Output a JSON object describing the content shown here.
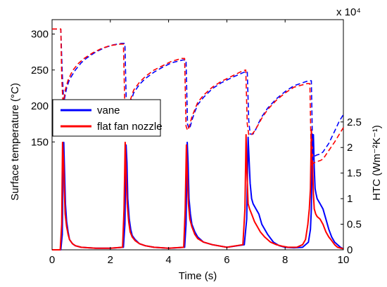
{
  "chart_data": {
    "type": "line",
    "xlabel": "Time (s)",
    "xlim": [
      0,
      10
    ],
    "x_ticks": [
      "0",
      "2",
      "4",
      "6",
      "8",
      "10"
    ],
    "y_left": {
      "label": "Surface temperature (°C)",
      "lim": [
        0,
        320
      ],
      "ticks": [
        "150",
        "200",
        "250",
        "300"
      ]
    },
    "y_right": {
      "label": "HTC (Wm⁻²K⁻¹)",
      "multiplier": "x 10⁴",
      "lim": [
        0,
        4.5
      ],
      "ticks": [
        "0",
        "0.5",
        "1",
        "1.5",
        "2",
        "2.5"
      ]
    },
    "legend": {
      "placement": "middle-left"
    },
    "series": [
      {
        "name": "vane",
        "color": "#0000ff",
        "axis": "right",
        "style": "solid",
        "x": [
          0,
          0.3,
          0.35,
          0.38,
          0.4,
          0.43,
          0.46,
          0.5,
          0.55,
          0.6,
          0.7,
          0.8,
          1.0,
          1.5,
          2.0,
          2.45,
          2.5,
          2.54,
          2.57,
          2.6,
          2.65,
          2.7,
          2.75,
          2.85,
          3.0,
          3.2,
          3.5,
          4.0,
          4.55,
          4.6,
          4.64,
          4.67,
          4.7,
          4.75,
          4.8,
          4.9,
          5.0,
          5.2,
          5.5,
          6.0,
          6.6,
          6.68,
          6.73,
          6.76,
          6.8,
          6.85,
          6.9,
          6.95,
          7.0,
          7.1,
          7.2,
          7.4,
          7.6,
          7.8,
          8.0,
          8.3,
          8.6,
          8.8,
          8.87,
          8.9,
          8.93,
          8.97,
          9.0,
          9.03,
          9.06,
          9.1,
          9.2,
          9.3,
          9.4,
          9.5,
          9.6,
          9.7,
          9.8,
          9.9,
          10.0
        ],
        "y": [
          0,
          0,
          0.3,
          1.8,
          2.1,
          1.5,
          0.9,
          0.55,
          0.35,
          0.2,
          0.12,
          0.08,
          0.05,
          0.03,
          0.03,
          0.05,
          0.5,
          2.05,
          1.7,
          1.0,
          0.6,
          0.4,
          0.28,
          0.2,
          0.12,
          0.08,
          0.05,
          0.03,
          0.05,
          0.5,
          2.1,
          1.7,
          1.0,
          0.7,
          0.5,
          0.35,
          0.25,
          0.15,
          0.1,
          0.05,
          0.1,
          0.6,
          2.2,
          1.8,
          1.3,
          1.0,
          0.9,
          0.85,
          0.8,
          0.7,
          0.5,
          0.3,
          0.15,
          0.08,
          0.05,
          0.04,
          0.05,
          0.15,
          0.4,
          0.8,
          2.0,
          2.25,
          1.6,
          1.2,
          1.1,
          1.0,
          0.9,
          0.8,
          0.6,
          0.4,
          0.25,
          0.15,
          0.1,
          0.05,
          0.02
        ]
      },
      {
        "name": "flat fan nozzle",
        "color": "#ff0000",
        "axis": "right",
        "style": "solid",
        "x": [
          0,
          0.28,
          0.33,
          0.36,
          0.39,
          0.42,
          0.45,
          0.5,
          0.55,
          0.6,
          0.7,
          0.8,
          1.0,
          1.5,
          2.0,
          2.42,
          2.47,
          2.51,
          2.54,
          2.58,
          2.63,
          2.68,
          2.75,
          2.85,
          3.0,
          3.2,
          3.5,
          4.0,
          4.52,
          4.57,
          4.61,
          4.64,
          4.68,
          4.73,
          4.8,
          4.9,
          5.0,
          5.2,
          5.5,
          6.0,
          6.55,
          6.62,
          6.66,
          6.69,
          6.73,
          6.78,
          6.85,
          6.95,
          7.05,
          7.15,
          7.3,
          7.5,
          7.7,
          7.9,
          8.1,
          8.4,
          8.6,
          8.7,
          8.78,
          8.83,
          8.87,
          8.9,
          8.93,
          8.97,
          9.0,
          9.05,
          9.1,
          9.2,
          9.3,
          9.4,
          9.5,
          9.6,
          9.7,
          9.8,
          10.0
        ],
        "y": [
          0,
          0,
          0.5,
          2.1,
          1.8,
          1.2,
          0.7,
          0.45,
          0.3,
          0.2,
          0.12,
          0.08,
          0.05,
          0.03,
          0.03,
          0.05,
          0.8,
          2.1,
          1.5,
          0.9,
          0.55,
          0.35,
          0.25,
          0.18,
          0.12,
          0.08,
          0.05,
          0.03,
          0.05,
          0.8,
          2.05,
          1.5,
          0.9,
          0.6,
          0.45,
          0.3,
          0.22,
          0.15,
          0.1,
          0.05,
          0.1,
          0.8,
          2.25,
          1.5,
          0.9,
          0.8,
          0.7,
          0.55,
          0.45,
          0.35,
          0.25,
          0.15,
          0.1,
          0.07,
          0.05,
          0.05,
          0.1,
          0.2,
          0.5,
          0.8,
          1.2,
          2.35,
          1.9,
          1.1,
          0.8,
          0.7,
          0.65,
          0.6,
          0.5,
          0.35,
          0.25,
          0.18,
          0.1,
          0.05,
          0.02
        ]
      },
      {
        "name": "vane",
        "color": "#0000ff",
        "axis": "left",
        "style": "dashed",
        "x": [
          0,
          0.3,
          0.35,
          0.4,
          0.5,
          0.6,
          0.8,
          1.0,
          1.2,
          1.5,
          1.8,
          2.1,
          2.4,
          2.5,
          2.55,
          2.6,
          2.65,
          2.7,
          2.8,
          3.0,
          3.2,
          3.5,
          3.8,
          4.1,
          4.5,
          4.6,
          4.65,
          4.7,
          4.75,
          4.8,
          4.9,
          5.0,
          5.2,
          5.5,
          5.8,
          6.2,
          6.6,
          6.7,
          6.75,
          6.8,
          6.9,
          7.0,
          7.1,
          7.2,
          7.4,
          7.7,
          8.0,
          8.3,
          8.8,
          8.9,
          8.95,
          9.0,
          9.1,
          9.2,
          9.3,
          9.5,
          9.7,
          9.85,
          10.0
        ],
        "y": [
          307,
          307,
          245,
          205,
          225,
          237,
          250,
          260,
          267,
          275,
          281,
          285,
          287,
          287,
          200,
          190,
          195,
          205,
          218,
          230,
          238,
          247,
          254,
          260,
          264,
          264,
          175,
          168,
          172,
          180,
          192,
          202,
          212,
          224,
          232,
          240,
          247,
          248,
          180,
          161,
          161,
          168,
          177,
          185,
          197,
          210,
          220,
          228,
          235,
          235,
          125,
          130,
          132,
          133,
          136,
          148,
          165,
          178,
          188
        ]
      },
      {
        "name": "flat fan nozzle",
        "color": "#ff0000",
        "axis": "left",
        "style": "dashed",
        "x": [
          0,
          0.3,
          0.33,
          0.38,
          0.45,
          0.55,
          0.7,
          0.9,
          1.1,
          1.4,
          1.7,
          2.0,
          2.35,
          2.45,
          2.5,
          2.55,
          2.6,
          2.7,
          2.8,
          3.0,
          3.2,
          3.5,
          3.8,
          4.1,
          4.45,
          4.55,
          4.6,
          4.65,
          4.7,
          4.8,
          4.9,
          5.0,
          5.2,
          5.5,
          5.8,
          6.2,
          6.55,
          6.65,
          6.7,
          6.75,
          6.85,
          6.95,
          7.05,
          7.2,
          7.4,
          7.7,
          8.0,
          8.3,
          8.75,
          8.85,
          8.9,
          8.95,
          9.05,
          9.2,
          9.3,
          9.5,
          9.7,
          9.85,
          10.0
        ],
        "y": [
          307,
          307,
          240,
          200,
          222,
          236,
          249,
          259,
          266,
          274,
          280,
          284,
          286,
          286,
          195,
          186,
          192,
          210,
          222,
          233,
          241,
          250,
          256,
          262,
          266,
          266,
          172,
          166,
          170,
          185,
          195,
          205,
          215,
          226,
          234,
          242,
          249,
          250,
          175,
          160,
          160,
          165,
          172,
          183,
          195,
          208,
          218,
          226,
          231,
          231,
          118,
          120,
          122,
          124,
          126,
          138,
          150,
          160,
          170
        ]
      }
    ]
  }
}
